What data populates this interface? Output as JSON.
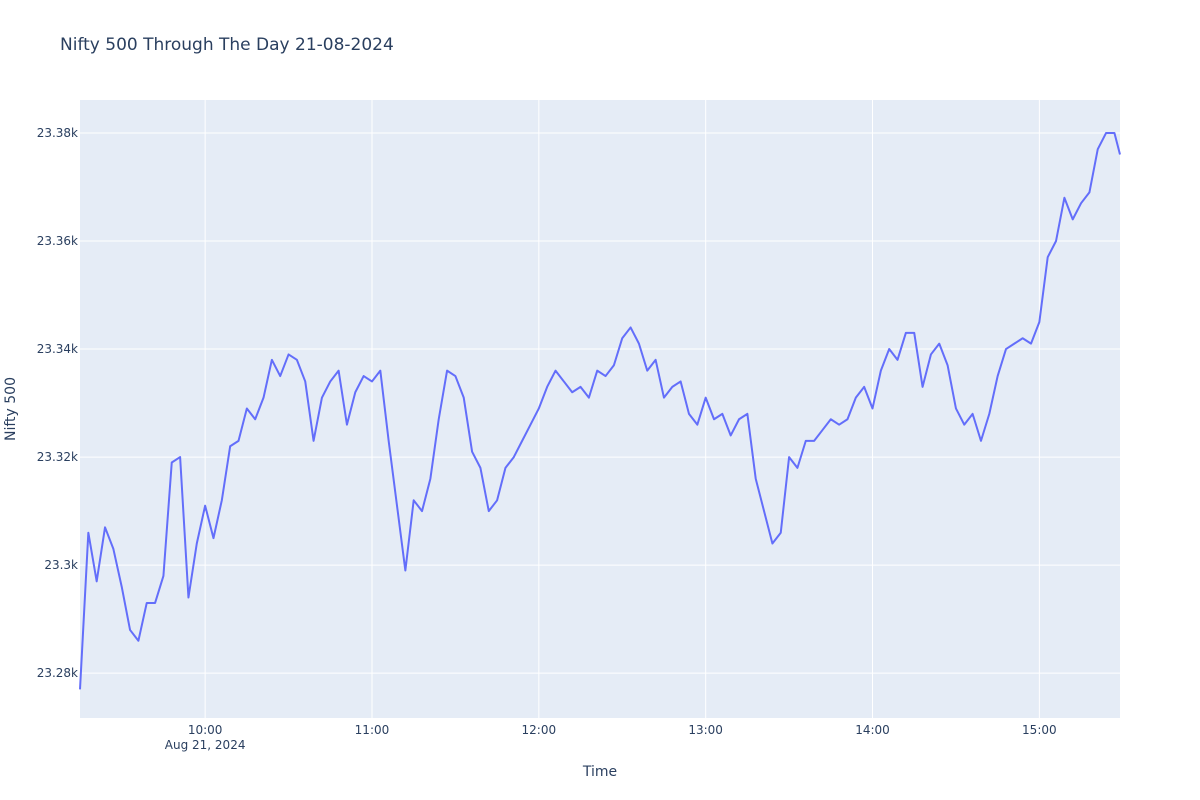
{
  "chart_data": {
    "type": "line",
    "title": "Nifty 500 Through The Day 21-08-2024",
    "x_label": "Time",
    "y_label": "Nifty 500",
    "x_date_label": "Aug 21, 2024",
    "x": [
      "09:15",
      "09:18",
      "09:21",
      "09:24",
      "09:27",
      "09:30",
      "09:33",
      "09:36",
      "09:39",
      "09:42",
      "09:45",
      "09:48",
      "09:51",
      "09:54",
      "09:57",
      "10:00",
      "10:03",
      "10:06",
      "10:09",
      "10:12",
      "10:15",
      "10:18",
      "10:21",
      "10:24",
      "10:27",
      "10:30",
      "10:33",
      "10:36",
      "10:39",
      "10:42",
      "10:45",
      "10:48",
      "10:51",
      "10:54",
      "10:57",
      "11:00",
      "11:03",
      "11:06",
      "11:09",
      "11:12",
      "11:15",
      "11:18",
      "11:21",
      "11:24",
      "11:27",
      "11:30",
      "11:33",
      "11:36",
      "11:39",
      "11:42",
      "11:45",
      "11:48",
      "11:51",
      "11:54",
      "11:57",
      "12:00",
      "12:03",
      "12:06",
      "12:09",
      "12:12",
      "12:15",
      "12:18",
      "12:21",
      "12:24",
      "12:27",
      "12:30",
      "12:33",
      "12:36",
      "12:39",
      "12:42",
      "12:45",
      "12:48",
      "12:51",
      "12:54",
      "12:57",
      "13:00",
      "13:03",
      "13:06",
      "13:09",
      "13:12",
      "13:15",
      "13:18",
      "13:21",
      "13:24",
      "13:27",
      "13:30",
      "13:33",
      "13:36",
      "13:39",
      "13:42",
      "13:45",
      "13:48",
      "13:51",
      "13:54",
      "13:57",
      "14:00",
      "14:03",
      "14:06",
      "14:09",
      "14:12",
      "14:15",
      "14:18",
      "14:21",
      "14:24",
      "14:27",
      "14:30",
      "14:33",
      "14:36",
      "14:39",
      "14:42",
      "14:45",
      "14:48",
      "14:51",
      "14:54",
      "14:57",
      "15:00",
      "15:03",
      "15:06",
      "15:09",
      "15:12",
      "15:15",
      "15:18",
      "15:21",
      "15:24",
      "15:27",
      "15:29"
    ],
    "series": [
      {
        "name": "Nifty 500",
        "color": "#636efa",
        "values": [
          23277,
          23306,
          23297,
          23307,
          23303,
          23296,
          23288,
          23286,
          23293,
          23293,
          23298,
          23319,
          23320,
          23294,
          23304,
          23311,
          23305,
          23312,
          23322,
          23323,
          23329,
          23327,
          23331,
          23338,
          23335,
          23339,
          23338,
          23334,
          23323,
          23331,
          23334,
          23336,
          23326,
          23332,
          23335,
          23334,
          23336,
          23323,
          23311,
          23299,
          23312,
          23310,
          23316,
          23327,
          23336,
          23335,
          23331,
          23321,
          23318,
          23310,
          23312,
          23318,
          23320,
          23323,
          23326,
          23329,
          23333,
          23336,
          23334,
          23332,
          23333,
          23331,
          23336,
          23335,
          23337,
          23342,
          23344,
          23341,
          23336,
          23338,
          23331,
          23333,
          23334,
          23328,
          23326,
          23331,
          23327,
          23328,
          23324,
          23327,
          23328,
          23316,
          23310,
          23304,
          23306,
          23320,
          23318,
          23323,
          23323,
          23325,
          23327,
          23326,
          23327,
          23331,
          23333,
          23329,
          23336,
          23340,
          23338,
          23343,
          23343,
          23333,
          23339,
          23341,
          23337,
          23329,
          23326,
          23328,
          23323,
          23328,
          23335,
          23340,
          23341,
          23342,
          23341,
          23345,
          23357,
          23360,
          23368,
          23364,
          23367,
          23369,
          23377,
          23380,
          23380,
          23376
        ]
      }
    ],
    "xlim": [
      "09:15",
      "15:29"
    ],
    "xticks": [
      "10:00",
      "11:00",
      "12:00",
      "13:00",
      "14:00",
      "15:00"
    ],
    "ylim": [
      23271.7,
      23386.1
    ],
    "yticks": [
      {
        "value": 23280,
        "label": "23.28k"
      },
      {
        "value": 23300,
        "label": "23.3k"
      },
      {
        "value": 23320,
        "label": "23.32k"
      },
      {
        "value": 23340,
        "label": "23.34k"
      },
      {
        "value": 23360,
        "label": "23.36k"
      },
      {
        "value": 23380,
        "label": "23.38k"
      }
    ],
    "grid": true
  }
}
